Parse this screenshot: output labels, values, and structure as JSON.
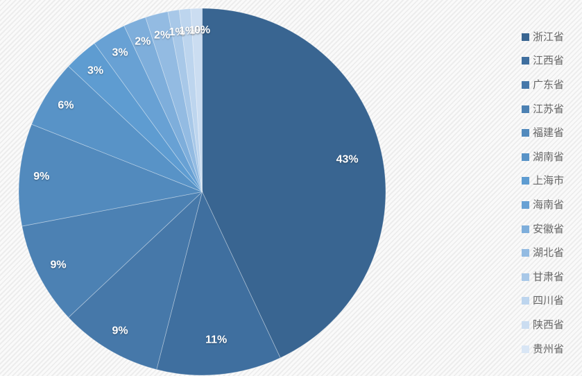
{
  "chart_data": {
    "type": "pie",
    "categories": [
      "浙江省",
      "江西省",
      "广东省",
      "江苏省",
      "福建省",
      "湖南省",
      "上海市",
      "海南省",
      "安徽省",
      "湖北省",
      "甘肃省",
      "四川省",
      "陕西省",
      "贵州省"
    ],
    "values": [
      43,
      11,
      9,
      9,
      9,
      6,
      3,
      3,
      2,
      2,
      1,
      1,
      1,
      0
    ],
    "data_labels": [
      "43%",
      "11%",
      "9%",
      "9%",
      "9%",
      "6%",
      "3%",
      "3%",
      "2%",
      "2%",
      "1%",
      "1%",
      "1%",
      "0%"
    ],
    "colors": [
      "#396591",
      "#3F6F9F",
      "#4678A9",
      "#4C81B3",
      "#528ABD",
      "#5893C7",
      "#5E9CD1",
      "#68A1D4",
      "#7EAEDB",
      "#93BBE2",
      "#A8C8E8",
      "#BDD5EE",
      "#CBDDF1",
      "#D9E6F5"
    ],
    "title": "",
    "legend_position": "right",
    "start_angle_deg": 0,
    "direction": "clockwise",
    "data_label_color": "#FFFFFF",
    "legend_text_color": "#666666"
  }
}
